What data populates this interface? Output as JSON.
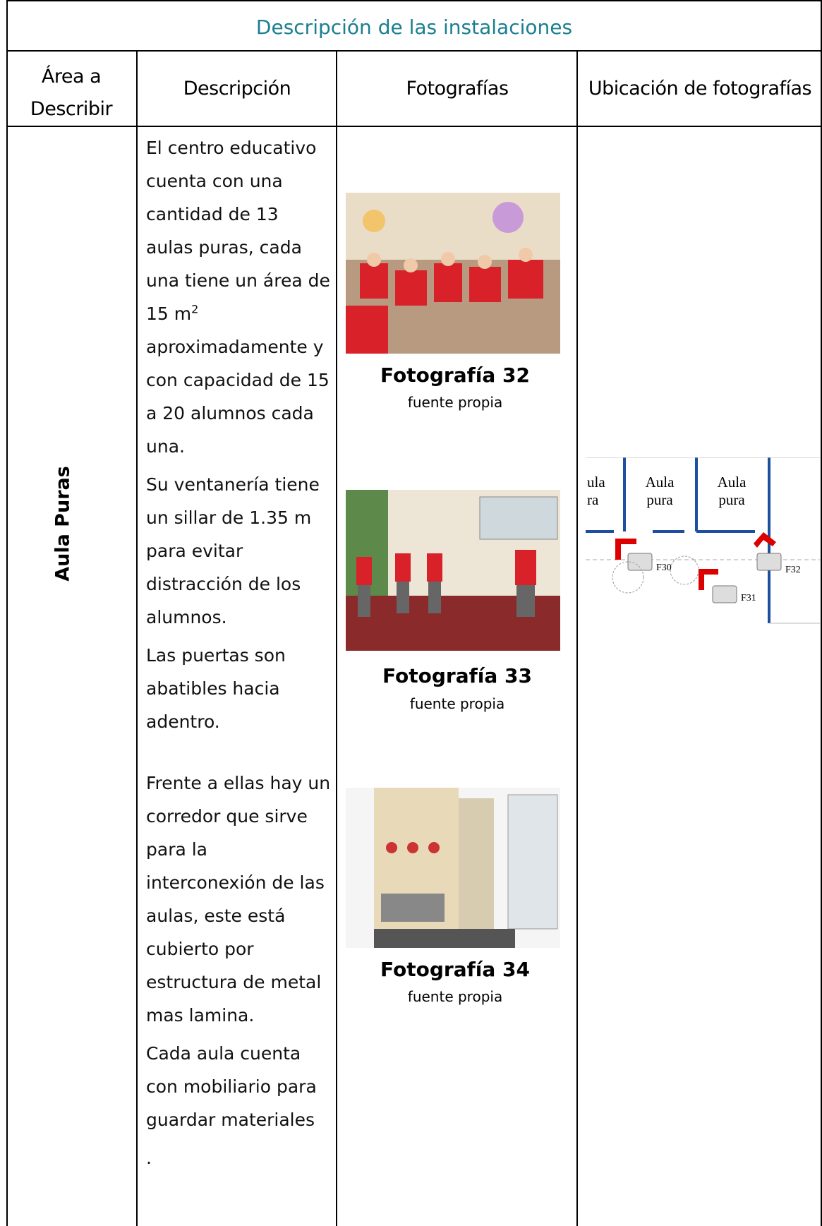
{
  "header": {
    "title": "Descripción de las instalaciones"
  },
  "table": {
    "headers": [
      "Área a Describir",
      "Descripción",
      "Fotografías",
      "Ubicación de fotografías"
    ],
    "rows": [
      {
        "area": "Aula Puras",
        "description": [
          {
            "text": "El centro educativo cuenta con una cantidad de 13 aulas puras, cada una tiene un área de 15 m",
            "superscript": "2",
            "text_after": " aproximadamente y con capacidad de 15 a 20 alumnos cada una."
          },
          {
            "text": "Su ventanería tiene un sillar de 1.35 m para evitar distracción de los alumnos."
          },
          {
            "text": "Las puertas son abatibles hacia adentro."
          },
          {
            "text": "Frente a ellas hay un corredor que sirve para la interconexión de las aulas, este está cubierto por estructura de metal mas lamina."
          },
          {
            "text": "Cada aula cuenta con mobiliario para guardar materiales"
          },
          {
            "text": "."
          }
        ],
        "photos": [
          {
            "caption": "Fotografía 32",
            "source": "fuente propia"
          },
          {
            "caption": "Fotografía 33",
            "source": "fuente propia"
          },
          {
            "caption": "Fotografía 34",
            "source": "fuente propia"
          }
        ],
        "map": {
          "rooms": [
            "ula",
            "ra",
            "Aula",
            "pura",
            "Aula",
            "pura"
          ],
          "cameras": [
            "F30",
            "F31",
            "F32"
          ]
        }
      }
    ]
  }
}
